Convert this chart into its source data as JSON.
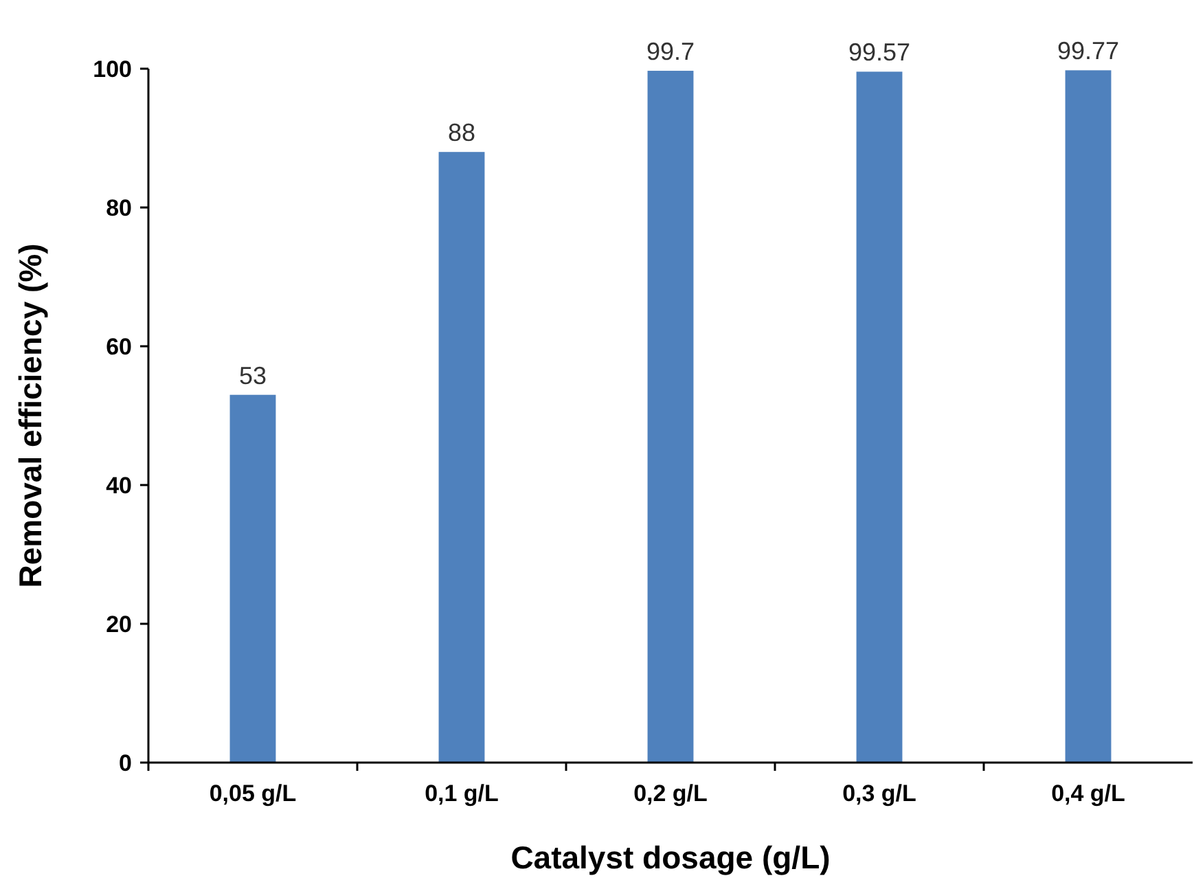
{
  "chart_data": {
    "type": "bar",
    "xlabel": "Catalyst dosage (g/L)",
    "ylabel": "Removal efficiency (%)",
    "categories": [
      "0,05 g/L",
      "0,1 g/L",
      "0,2 g/L",
      "0,3 g/L",
      "0,4 g/L"
    ],
    "values": [
      53,
      88,
      99.7,
      99.57,
      99.77
    ],
    "color": "#4f81bd",
    "ylim": [
      0,
      100
    ],
    "yticks": [
      0,
      20,
      40,
      60,
      80,
      100
    ],
    "data_labels": true
  }
}
